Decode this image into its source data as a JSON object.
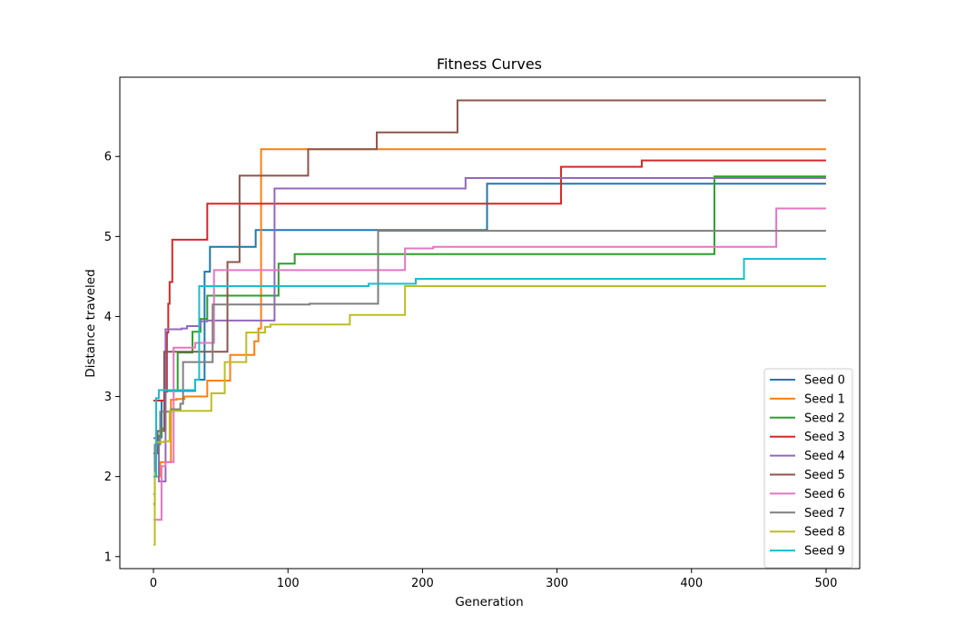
{
  "chart_data": {
    "type": "line",
    "title": "Fitness Curves",
    "xlabel": "Generation",
    "ylabel": "Distance traveled",
    "xlim": [
      -25,
      525
    ],
    "ylim": [
      0.85,
      6.99
    ],
    "xticks": [
      0,
      100,
      200,
      300,
      400,
      500
    ],
    "yticks": [
      1,
      2,
      3,
      4,
      5,
      6
    ],
    "grid": false,
    "legend_position": "lower-right",
    "step_style": "post",
    "series": [
      {
        "name": "Seed 0",
        "color": "#1f77b4",
        "points": [
          [
            0,
            2.48
          ],
          [
            3,
            2.49
          ],
          [
            6,
            2.95
          ],
          [
            8,
            3.07
          ],
          [
            31,
            3.21
          ],
          [
            38,
            4.56
          ],
          [
            42,
            4.87
          ],
          [
            76,
            5.08
          ],
          [
            248,
            5.66
          ],
          [
            500,
            5.66
          ]
        ]
      },
      {
        "name": "Seed 1",
        "color": "#ff7f0e",
        "points": [
          [
            0,
            1.65
          ],
          [
            1,
            2.0
          ],
          [
            5,
            2.18
          ],
          [
            13,
            2.96
          ],
          [
            17,
            2.97
          ],
          [
            23,
            3.0
          ],
          [
            40,
            3.2
          ],
          [
            57,
            3.52
          ],
          [
            75,
            3.69
          ],
          [
            78,
            3.85
          ],
          [
            80,
            6.09
          ],
          [
            500,
            6.09
          ]
        ]
      },
      {
        "name": "Seed 2",
        "color": "#2ca02c",
        "points": [
          [
            0,
            1.66
          ],
          [
            1,
            2.29
          ],
          [
            3,
            2.51
          ],
          [
            6,
            2.6
          ],
          [
            9,
            3.07
          ],
          [
            18,
            3.55
          ],
          [
            29,
            3.81
          ],
          [
            35,
            3.97
          ],
          [
            40,
            4.26
          ],
          [
            93,
            4.66
          ],
          [
            105,
            4.78
          ],
          [
            417,
            5.75
          ],
          [
            500,
            5.75
          ]
        ]
      },
      {
        "name": "Seed 3",
        "color": "#d62728",
        "points": [
          [
            0,
            2.95
          ],
          [
            8,
            2.95
          ],
          [
            9,
            3.06
          ],
          [
            10,
            3.8
          ],
          [
            11,
            4.16
          ],
          [
            12,
            4.43
          ],
          [
            14,
            4.96
          ],
          [
            40,
            5.41
          ],
          [
            303,
            5.87
          ],
          [
            363,
            5.95
          ],
          [
            500,
            5.95
          ]
        ]
      },
      {
        "name": "Seed 4",
        "color": "#9467bd",
        "points": [
          [
            0,
            2.48
          ],
          [
            4,
            1.94
          ],
          [
            9,
            3.84
          ],
          [
            21,
            3.85
          ],
          [
            25,
            3.88
          ],
          [
            35,
            3.94
          ],
          [
            40,
            3.95
          ],
          [
            90,
            5.6
          ],
          [
            232,
            5.73
          ],
          [
            500,
            5.73
          ]
        ]
      },
      {
        "name": "Seed 5",
        "color": "#8c564b",
        "points": [
          [
            0,
            2.29
          ],
          [
            3,
            2.57
          ],
          [
            8,
            3.56
          ],
          [
            55,
            4.68
          ],
          [
            64,
            5.76
          ],
          [
            115,
            6.09
          ],
          [
            166,
            6.3
          ],
          [
            226,
            6.7
          ],
          [
            500,
            6.7
          ]
        ]
      },
      {
        "name": "Seed 6",
        "color": "#e377c2",
        "points": [
          [
            0,
            1.46
          ],
          [
            3,
            1.46
          ],
          [
            6,
            2.13
          ],
          [
            9,
            2.18
          ],
          [
            15,
            3.61
          ],
          [
            31,
            3.67
          ],
          [
            45,
            4.58
          ],
          [
            187,
            4.85
          ],
          [
            208,
            4.87
          ],
          [
            463,
            5.35
          ],
          [
            500,
            5.35
          ]
        ]
      },
      {
        "name": "Seed 7",
        "color": "#7f7f7f",
        "points": [
          [
            0,
            1.78
          ],
          [
            1,
            2.4
          ],
          [
            5,
            2.81
          ],
          [
            13,
            2.84
          ],
          [
            20,
            2.91
          ],
          [
            22,
            3.43
          ],
          [
            44,
            4.15
          ],
          [
            116,
            4.16
          ],
          [
            167,
            5.07
          ],
          [
            500,
            5.07
          ]
        ]
      },
      {
        "name": "Seed 8",
        "color": "#bcbd22",
        "points": [
          [
            0,
            1.15
          ],
          [
            1,
            2.05
          ],
          [
            2,
            2.43
          ],
          [
            8,
            2.44
          ],
          [
            12,
            2.82
          ],
          [
            43,
            3.04
          ],
          [
            53,
            3.43
          ],
          [
            69,
            3.8
          ],
          [
            83,
            3.87
          ],
          [
            87,
            3.9
          ],
          [
            146,
            4.02
          ],
          [
            187,
            4.38
          ],
          [
            500,
            4.38
          ]
        ]
      },
      {
        "name": "Seed 9",
        "color": "#17becf",
        "points": [
          [
            0,
            2.0
          ],
          [
            2,
            2.98
          ],
          [
            4,
            3.08
          ],
          [
            31,
            3.21
          ],
          [
            34,
            4.38
          ],
          [
            160,
            4.41
          ],
          [
            195,
            4.47
          ],
          [
            439,
            4.72
          ],
          [
            500,
            4.72
          ]
        ]
      }
    ]
  }
}
